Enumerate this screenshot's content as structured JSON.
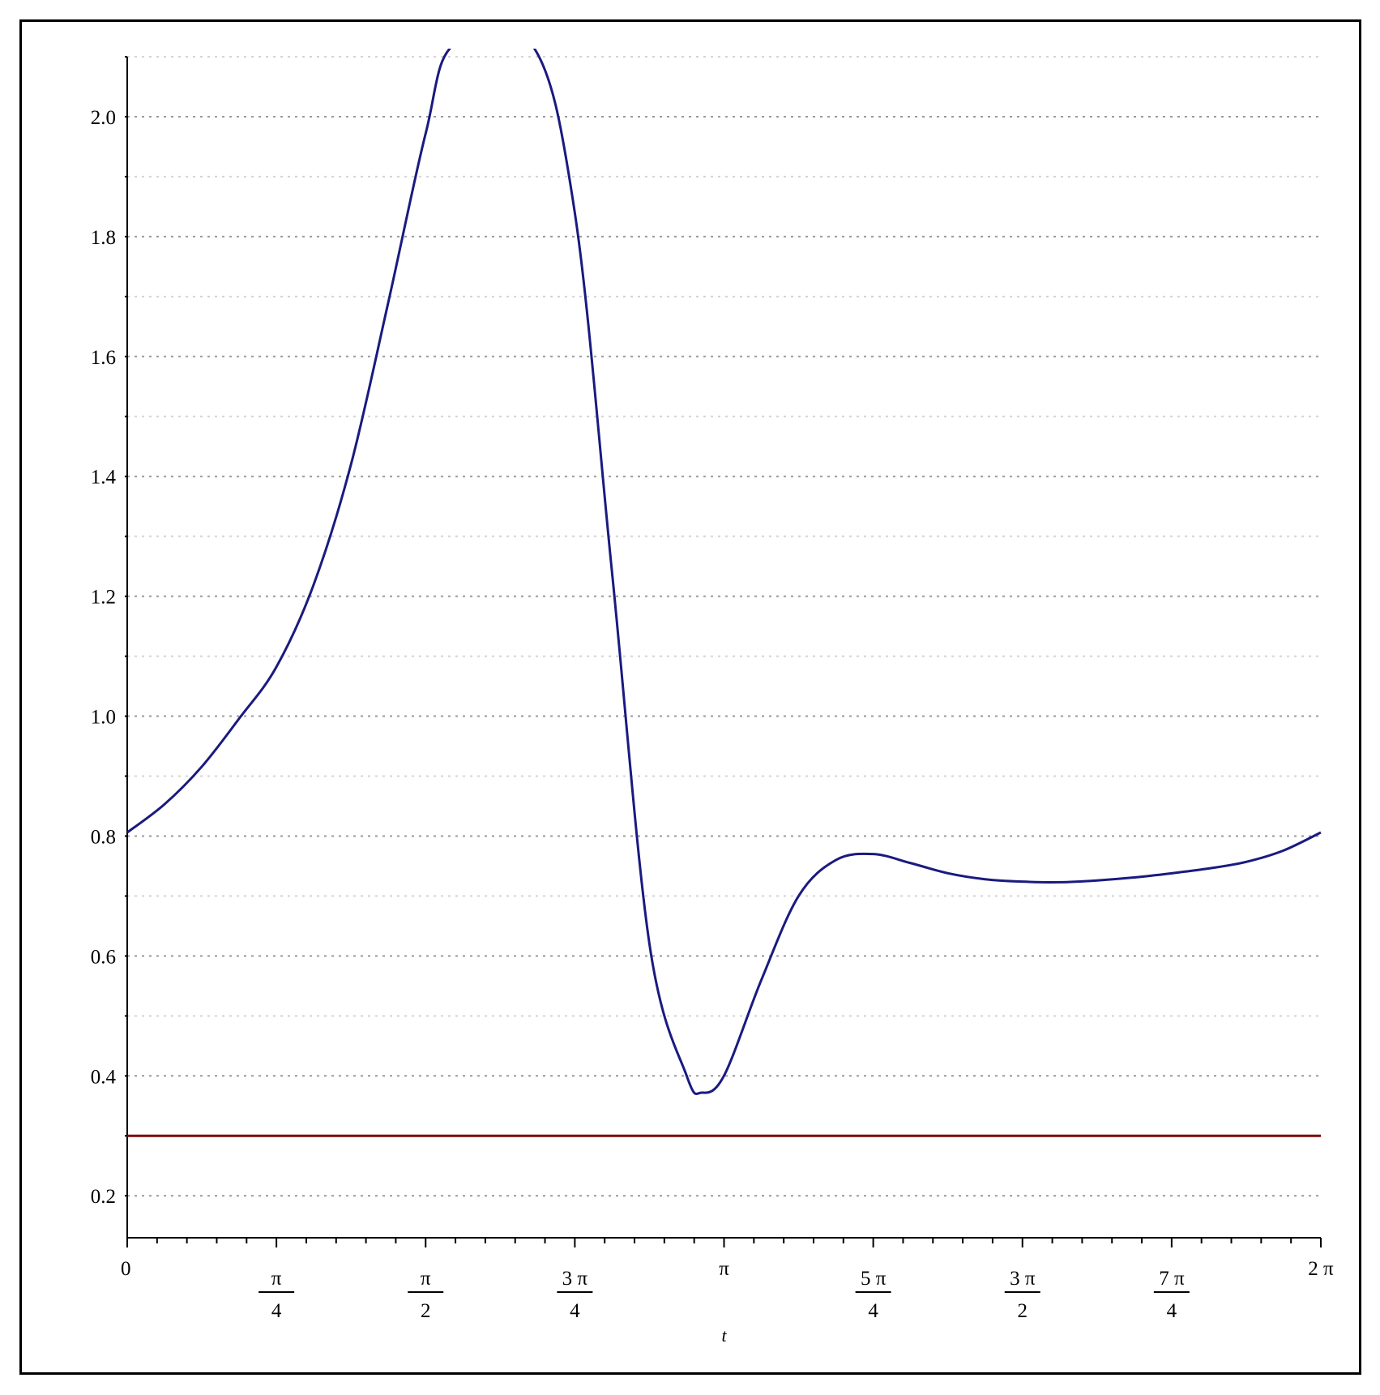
{
  "chart_data": {
    "type": "line",
    "title": "",
    "xlabel": "t",
    "ylabel": "",
    "xlim": [
      0,
      6.283185307
    ],
    "ylim": [
      0.13,
      2.1
    ],
    "grid": "horizontal dotted",
    "x_ticks": [
      {
        "value": 0,
        "num": "0",
        "den": ""
      },
      {
        "value": 0.785398,
        "num": "π",
        "den": "4"
      },
      {
        "value": 1.570796,
        "num": "π",
        "den": "2"
      },
      {
        "value": 2.356194,
        "num": "3 π",
        "den": "4"
      },
      {
        "value": 3.141593,
        "num": "π",
        "den": ""
      },
      {
        "value": 3.926991,
        "num": "5 π",
        "den": "4"
      },
      {
        "value": 4.712389,
        "num": "3 π",
        "den": "2"
      },
      {
        "value": 5.497787,
        "num": "7 π",
        "den": "4"
      },
      {
        "value": 6.283185,
        "num": "2 π",
        "den": ""
      }
    ],
    "y_ticks": [
      {
        "value": 0.2,
        "label": "0.2"
      },
      {
        "value": 0.4,
        "label": "0.4"
      },
      {
        "value": 0.6,
        "label": "0.6"
      },
      {
        "value": 0.8,
        "label": "0.8"
      },
      {
        "value": 1.0,
        "label": "1.0"
      },
      {
        "value": 1.2,
        "label": "1.2"
      },
      {
        "value": 1.4,
        "label": "1.4"
      },
      {
        "value": 1.6,
        "label": "1.6"
      },
      {
        "value": 1.8,
        "label": "1.8"
      },
      {
        "value": 2.0,
        "label": "2.0"
      }
    ],
    "series": [
      {
        "color": "#1a1a80",
        "x": [
          0,
          0.196,
          0.393,
          0.589,
          0.785,
          0.982,
          1.178,
          1.374,
          1.571,
          1.718,
          2.13,
          2.356,
          2.552,
          2.749,
          2.945,
          3.024,
          3.141,
          3.338,
          3.534,
          3.73,
          3.927,
          4.123,
          4.32,
          4.516,
          4.712,
          4.909,
          5.105,
          5.301,
          5.498,
          5.694,
          5.89,
          6.087,
          6.283
        ],
        "y": [
          0.806,
          0.853,
          0.916,
          0.996,
          1.082,
          1.22,
          1.42,
          1.69,
          1.972,
          2.12,
          2.12,
          1.84,
          1.24,
          0.62,
          0.4,
          0.372,
          0.4,
          0.56,
          0.7,
          0.76,
          0.77,
          0.755,
          0.738,
          0.728,
          0.724,
          0.723,
          0.726,
          0.731,
          0.738,
          0.746,
          0.757,
          0.776,
          0.806
        ]
      },
      {
        "color": "#7a0000",
        "x": [
          0,
          6.283
        ],
        "y": [
          0.3,
          0.3
        ]
      }
    ]
  }
}
